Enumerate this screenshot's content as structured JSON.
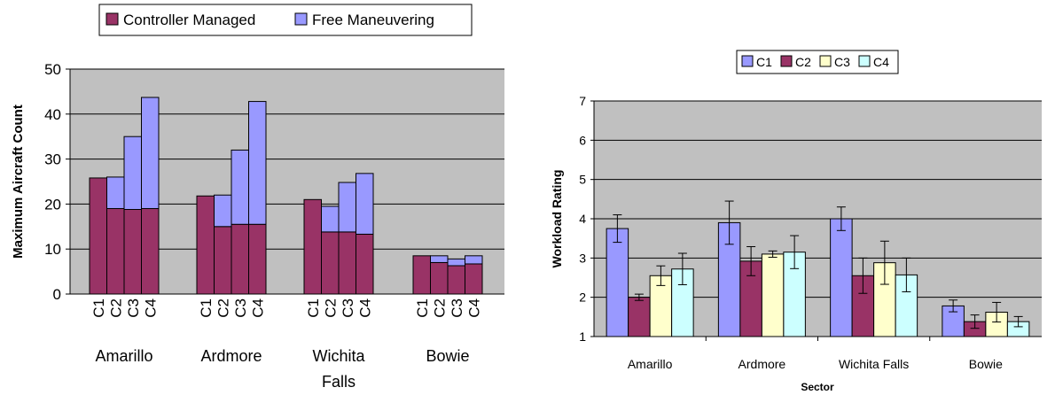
{
  "colors": {
    "controller": "#993366",
    "free": "#9999ff",
    "c1": "#9999ff",
    "c2": "#993366",
    "c3": "#ffffcc",
    "c4": "#ccffff",
    "plot_bg": "#c0c0c0",
    "grid": "#000000"
  },
  "chart_data": [
    {
      "type": "bar",
      "stacked": true,
      "ylabel": "Maximum Aircraft Count",
      "ylim": [
        0,
        50
      ],
      "yticks": [
        0,
        10,
        20,
        30,
        40,
        50
      ],
      "grid": true,
      "legend_position": "top",
      "groups": [
        "Amarillo",
        "Ardmore",
        "Wichita Falls",
        "Bowie"
      ],
      "group_label_lines": [
        [
          "Amarillo"
        ],
        [
          "Ardmore"
        ],
        [
          "Wichita",
          "Falls"
        ],
        [
          "Bowie"
        ]
      ],
      "conditions": [
        "C1",
        "C2",
        "C3",
        "C4"
      ],
      "series": [
        {
          "name": "Controller Managed",
          "color_key": "controller",
          "values": [
            [
              25.8,
              19,
              18.8,
              19
            ],
            [
              21.8,
              15,
              15.5,
              15.5
            ],
            [
              21,
              13.8,
              13.8,
              13.3
            ],
            [
              8.5,
              7,
              6.3,
              6.7
            ]
          ]
        },
        {
          "name": "Free Maneuvering",
          "color_key": "free",
          "values": [
            [
              0,
              7,
              16.2,
              24.7
            ],
            [
              0,
              7,
              16.5,
              27.3
            ],
            [
              0,
              5.7,
              11,
              13.5
            ],
            [
              0,
              1.5,
              1.5,
              1.8
            ]
          ]
        }
      ]
    },
    {
      "type": "bar",
      "xlabel": "Sector",
      "ylabel": "Workload Rating",
      "ylim": [
        1,
        7
      ],
      "yticks": [
        1,
        2,
        3,
        4,
        5,
        6,
        7
      ],
      "grid": true,
      "legend_position": "top",
      "categories": [
        "Amarillo",
        "Ardmore",
        "Wichita Falls",
        "Bowie"
      ],
      "series": [
        {
          "name": "C1",
          "color_key": "c1",
          "values": [
            3.75,
            3.9,
            4.0,
            1.78
          ],
          "error": [
            0.35,
            0.55,
            0.3,
            0.15
          ]
        },
        {
          "name": "C2",
          "color_key": "c2",
          "values": [
            2.0,
            2.92,
            2.55,
            1.38
          ],
          "error": [
            0.08,
            0.37,
            0.45,
            0.17
          ]
        },
        {
          "name": "C3",
          "color_key": "c3",
          "values": [
            2.55,
            3.1,
            2.88,
            1.62
          ],
          "error": [
            0.25,
            0.08,
            0.55,
            0.25
          ]
        },
        {
          "name": "C4",
          "color_key": "c4",
          "values": [
            2.72,
            3.15,
            2.57,
            1.38
          ],
          "error": [
            0.4,
            0.42,
            0.43,
            0.13
          ]
        }
      ]
    }
  ]
}
